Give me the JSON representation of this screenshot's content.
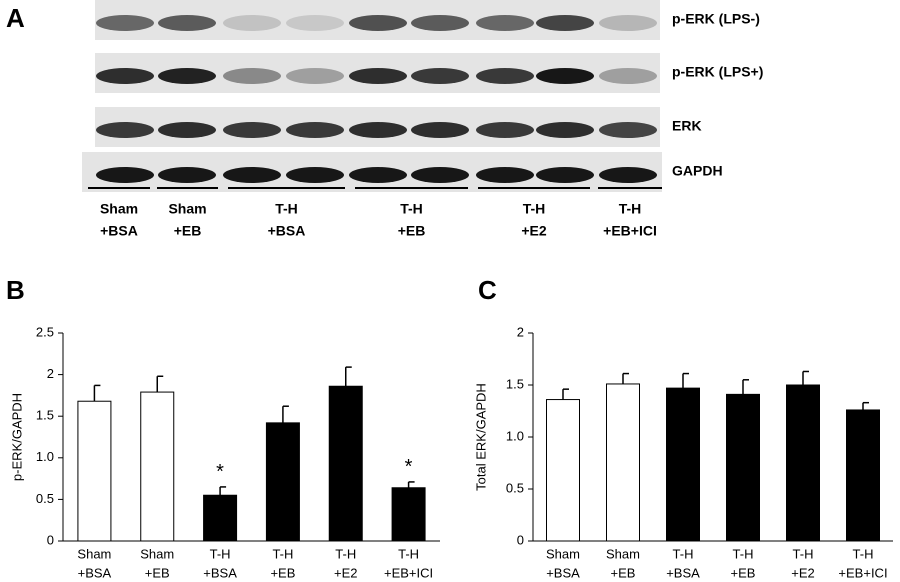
{
  "blot": {
    "panel_label": "A",
    "rows": [
      "p-ERK (LPS-)",
      "p-ERK (LPS+)",
      "ERK",
      "GAPDH"
    ],
    "groups": [
      [
        "Sham",
        "+BSA"
      ],
      [
        "Sham",
        "+EB"
      ],
      [
        "T-H",
        "+BSA"
      ],
      [
        "T-H",
        "+EB"
      ],
      [
        "T-H",
        "+E2"
      ],
      [
        "T-H",
        "+EB+ICI"
      ]
    ]
  },
  "chart_data": [
    {
      "type": "bar",
      "panel_label": "B",
      "y_label": "p-ERK/GAPDH",
      "categories": [
        [
          "Sham",
          "+BSA"
        ],
        [
          "Sham",
          "+EB"
        ],
        [
          "T-H",
          "+BSA"
        ],
        [
          "T-H",
          "+EB"
        ],
        [
          "T-H",
          "+E2"
        ],
        [
          "T-H",
          "+EB+ICI"
        ]
      ],
      "values": [
        1.68,
        1.79,
        0.55,
        1.42,
        1.86,
        0.64
      ],
      "errors": [
        0.19,
        0.19,
        0.1,
        0.2,
        0.23,
        0.07
      ],
      "colors": [
        "#ffffff",
        "#ffffff",
        "#000000",
        "#000000",
        "#000000",
        "#000000"
      ],
      "significance": [
        null,
        null,
        "*",
        null,
        null,
        "*"
      ],
      "ylim": [
        0,
        2.5
      ],
      "yticks": [
        0,
        0.5,
        {
          "value": 1,
          "label": "1.0"
        },
        1.5,
        2,
        2.5
      ]
    },
    {
      "type": "bar",
      "panel_label": "C",
      "y_label": "Total ERK/GAPDH",
      "categories": [
        [
          "Sham",
          "+BSA"
        ],
        [
          "Sham",
          "+EB"
        ],
        [
          "T-H",
          "+BSA"
        ],
        [
          "T-H",
          "+EB"
        ],
        [
          "T-H",
          "+E2"
        ],
        [
          "T-H",
          "+EB+ICI"
        ]
      ],
      "values": [
        1.36,
        1.51,
        1.47,
        1.41,
        1.5,
        1.26
      ],
      "errors": [
        0.1,
        0.1,
        0.14,
        0.14,
        0.13,
        0.07
      ],
      "colors": [
        "#ffffff",
        "#ffffff",
        "#000000",
        "#000000",
        "#000000",
        "#000000"
      ],
      "ylim": [
        0,
        2
      ],
      "yticks": [
        0,
        0.5,
        {
          "value": 1,
          "label": "1.0"
        },
        1.5,
        2
      ]
    }
  ]
}
